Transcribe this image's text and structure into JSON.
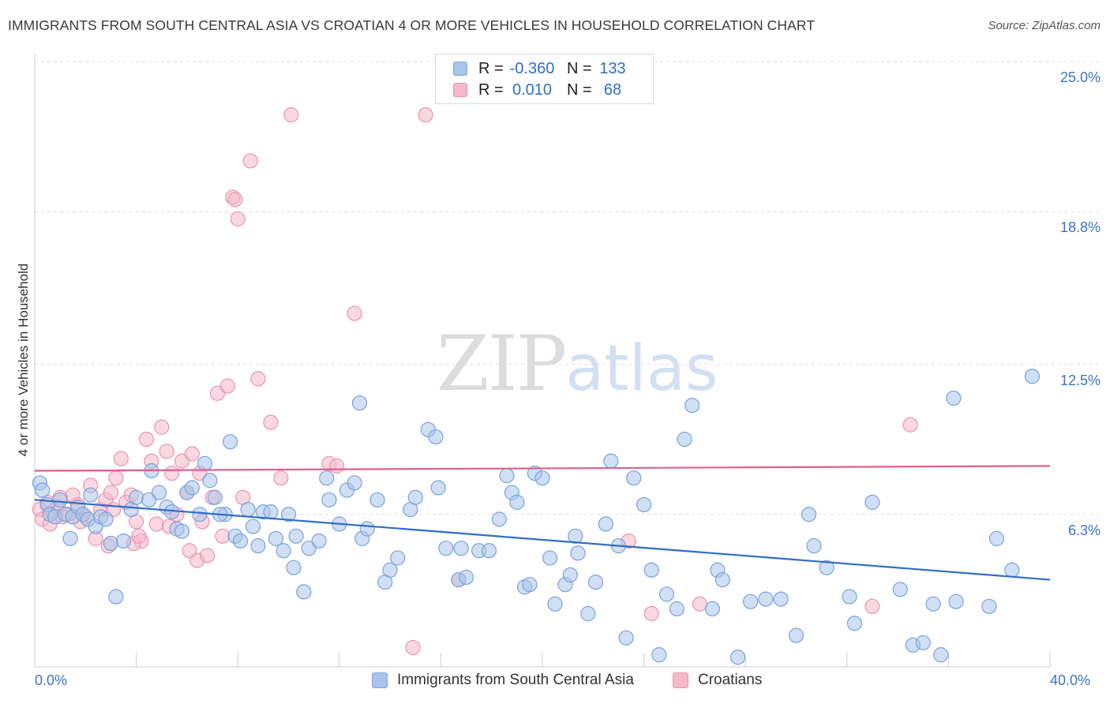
{
  "title": "IMMIGRANTS FROM SOUTH CENTRAL ASIA VS CROATIAN 4 OR MORE VEHICLES IN HOUSEHOLD CORRELATION CHART",
  "source": "Source: ZipAtlas.com",
  "watermark": {
    "part1": "ZIP",
    "part2": "atlas"
  },
  "legend": {
    "rows": [
      {
        "r_label": "R =",
        "r_value": "-0.360",
        "n_label": "N =",
        "n_value": "133",
        "color": "#a9c4ea",
        "border": "#7fa6de"
      },
      {
        "r_label": "R =",
        "r_value": "0.010",
        "n_label": "N =",
        "n_value": "68",
        "color": "#f5b8cb",
        "border": "#ec93ae"
      }
    ]
  },
  "chart_data": {
    "type": "scatter",
    "title": "IMMIGRANTS FROM SOUTH CENTRAL ASIA VS CROATIAN 4 OR MORE VEHICLES IN HOUSEHOLD CORRELATION CHART",
    "xlabel": "",
    "ylabel": "4 or more Vehicles in Household",
    "xlim": [
      0,
      40
    ],
    "ylim": [
      0,
      25
    ],
    "x_tick_labels": [
      "0.0%",
      "40.0%"
    ],
    "y_ticks": [
      {
        "value": 6.3,
        "label": "6.3%"
      },
      {
        "value": 12.5,
        "label": "12.5%"
      },
      {
        "value": 18.8,
        "label": "18.8%"
      },
      {
        "value": 25.0,
        "label": "25.0%"
      }
    ],
    "grid": true,
    "legend_position": "bottom",
    "series": [
      {
        "name": "Immigrants from South Central Asia",
        "color": "#a9c4ea",
        "stroke": "#7aa3dc",
        "line_color": "#2f6dc9",
        "trend": {
          "x0": 0,
          "y0": 6.9,
          "x1": 40,
          "y1": 3.6
        },
        "points": [
          [
            0.2,
            7.6
          ],
          [
            0.3,
            7.3
          ],
          [
            0.5,
            6.7
          ],
          [
            0.6,
            6.3
          ],
          [
            0.8,
            6.2
          ],
          [
            1.0,
            6.9
          ],
          [
            1.2,
            6.3
          ],
          [
            1.4,
            5.3
          ],
          [
            1.5,
            6.2
          ],
          [
            1.7,
            6.6
          ],
          [
            1.9,
            6.3
          ],
          [
            2.1,
            6.1
          ],
          [
            2.2,
            7.1
          ],
          [
            2.4,
            5.8
          ],
          [
            2.6,
            6.2
          ],
          [
            2.8,
            6.1
          ],
          [
            3.0,
            5.1
          ],
          [
            3.5,
            5.2
          ],
          [
            3.8,
            6.5
          ],
          [
            4.0,
            7.0
          ],
          [
            4.5,
            6.9
          ],
          [
            4.6,
            8.1
          ],
          [
            4.9,
            7.2
          ],
          [
            5.2,
            6.6
          ],
          [
            5.4,
            6.4
          ],
          [
            5.6,
            5.7
          ],
          [
            5.8,
            5.6
          ],
          [
            6.0,
            7.2
          ],
          [
            6.2,
            7.4
          ],
          [
            6.5,
            6.3
          ],
          [
            6.7,
            8.4
          ],
          [
            6.9,
            7.7
          ],
          [
            7.1,
            7.0
          ],
          [
            7.5,
            6.3
          ],
          [
            7.7,
            9.3
          ],
          [
            7.9,
            5.4
          ],
          [
            8.1,
            5.2
          ],
          [
            8.4,
            6.5
          ],
          [
            8.6,
            5.8
          ],
          [
            8.8,
            5.0
          ],
          [
            9.0,
            6.4
          ],
          [
            9.3,
            6.4
          ],
          [
            9.5,
            5.3
          ],
          [
            9.8,
            4.8
          ],
          [
            10.0,
            6.3
          ],
          [
            10.3,
            5.4
          ],
          [
            10.6,
            3.1
          ],
          [
            10.8,
            4.9
          ],
          [
            11.2,
            5.2
          ],
          [
            11.6,
            6.9
          ],
          [
            12.0,
            5.9
          ],
          [
            12.3,
            7.3
          ],
          [
            12.6,
            7.6
          ],
          [
            12.9,
            5.3
          ],
          [
            13.1,
            5.7
          ],
          [
            13.5,
            6.9
          ],
          [
            13.8,
            3.5
          ],
          [
            14.0,
            4.0
          ],
          [
            14.3,
            4.5
          ],
          [
            14.8,
            6.5
          ],
          [
            15.0,
            7.0
          ],
          [
            15.5,
            9.8
          ],
          [
            15.9,
            7.4
          ],
          [
            16.2,
            4.9
          ],
          [
            16.7,
            3.6
          ],
          [
            17.0,
            3.7
          ],
          [
            17.5,
            4.8
          ],
          [
            17.9,
            4.8
          ],
          [
            18.3,
            6.1
          ],
          [
            18.8,
            7.2
          ],
          [
            19.0,
            6.8
          ],
          [
            19.3,
            3.3
          ],
          [
            19.5,
            3.4
          ],
          [
            19.7,
            8.0
          ],
          [
            20.0,
            7.8
          ],
          [
            20.3,
            4.5
          ],
          [
            20.5,
            2.6
          ],
          [
            20.9,
            3.4
          ],
          [
            21.1,
            3.8
          ],
          [
            21.4,
            4.7
          ],
          [
            21.8,
            2.2
          ],
          [
            22.1,
            3.5
          ],
          [
            22.5,
            5.9
          ],
          [
            22.7,
            8.5
          ],
          [
            23.3,
            1.2
          ],
          [
            23.6,
            7.8
          ],
          [
            24.0,
            6.7
          ],
          [
            24.3,
            4.0
          ],
          [
            24.6,
            0.5
          ],
          [
            24.9,
            3.0
          ],
          [
            25.3,
            2.4
          ],
          [
            25.6,
            9.4
          ],
          [
            25.9,
            10.8
          ],
          [
            26.7,
            2.4
          ],
          [
            26.9,
            4.0
          ],
          [
            27.1,
            3.6
          ],
          [
            27.7,
            0.4
          ],
          [
            28.2,
            2.7
          ],
          [
            28.8,
            2.8
          ],
          [
            29.4,
            2.8
          ],
          [
            30.0,
            1.3
          ],
          [
            30.5,
            6.3
          ],
          [
            31.2,
            4.1
          ],
          [
            32.1,
            2.9
          ],
          [
            32.3,
            1.8
          ],
          [
            33.0,
            6.8
          ],
          [
            34.1,
            3.2
          ],
          [
            34.6,
            0.9
          ],
          [
            35.0,
            1.0
          ],
          [
            35.4,
            2.6
          ],
          [
            35.7,
            0.5
          ],
          [
            36.3,
            2.7
          ],
          [
            37.6,
            2.5
          ],
          [
            37.9,
            5.3
          ],
          [
            38.5,
            4.0
          ],
          [
            39.3,
            12.0
          ],
          [
            36.2,
            11.1
          ],
          [
            16.8,
            4.9
          ],
          [
            10.2,
            4.1
          ],
          [
            18.6,
            7.9
          ],
          [
            30.7,
            5.0
          ],
          [
            23.0,
            5.0
          ],
          [
            3.2,
            2.9
          ],
          [
            12.8,
            10.9
          ],
          [
            11.5,
            7.8
          ],
          [
            7.3,
            6.3
          ],
          [
            21.3,
            5.4
          ],
          [
            15.8,
            9.5
          ]
        ]
      },
      {
        "name": "Croatians",
        "color": "#f5b8cb",
        "stroke": "#ec93ae",
        "line_color": "#e0608a",
        "trend": {
          "x0": 0,
          "y0": 8.1,
          "x1": 40,
          "y1": 8.3
        },
        "points": [
          [
            0.2,
            6.5
          ],
          [
            0.3,
            6.1
          ],
          [
            0.5,
            6.8
          ],
          [
            0.7,
            6.4
          ],
          [
            0.9,
            6.6
          ],
          [
            1.1,
            6.2
          ],
          [
            1.3,
            6.3
          ],
          [
            1.5,
            7.1
          ],
          [
            1.7,
            6.7
          ],
          [
            2.0,
            6.2
          ],
          [
            2.2,
            7.5
          ],
          [
            2.4,
            5.3
          ],
          [
            2.6,
            6.5
          ],
          [
            2.8,
            6.9
          ],
          [
            3.0,
            7.2
          ],
          [
            3.2,
            7.8
          ],
          [
            3.4,
            8.6
          ],
          [
            3.6,
            6.8
          ],
          [
            3.8,
            7.1
          ],
          [
            4.0,
            6.0
          ],
          [
            4.2,
            5.2
          ],
          [
            4.4,
            9.4
          ],
          [
            4.6,
            8.5
          ],
          [
            4.8,
            5.9
          ],
          [
            5.0,
            9.9
          ],
          [
            5.2,
            8.9
          ],
          [
            5.4,
            8.0
          ],
          [
            5.6,
            6.3
          ],
          [
            5.8,
            8.5
          ],
          [
            6.0,
            7.2
          ],
          [
            6.2,
            8.8
          ],
          [
            6.4,
            4.4
          ],
          [
            6.6,
            6.0
          ],
          [
            6.8,
            4.6
          ],
          [
            7.0,
            7.0
          ],
          [
            7.2,
            11.3
          ],
          [
            7.4,
            5.4
          ],
          [
            7.6,
            11.6
          ],
          [
            7.8,
            19.4
          ],
          [
            8.0,
            18.5
          ],
          [
            8.2,
            7.0
          ],
          [
            8.5,
            20.9
          ],
          [
            8.8,
            11.9
          ],
          [
            9.3,
            10.1
          ],
          [
            9.7,
            7.8
          ],
          [
            10.1,
            22.8
          ],
          [
            11.6,
            8.4
          ],
          [
            11.9,
            8.3
          ],
          [
            12.6,
            14.6
          ],
          [
            14.9,
            0.8
          ],
          [
            15.4,
            22.8
          ],
          [
            16.7,
            3.6
          ],
          [
            24.3,
            2.2
          ],
          [
            26.2,
            2.6
          ],
          [
            33.0,
            2.5
          ],
          [
            34.5,
            10.0
          ],
          [
            23.4,
            5.2
          ],
          [
            6.1,
            4.8
          ],
          [
            2.9,
            5.0
          ],
          [
            3.9,
            5.1
          ],
          [
            1.8,
            6.0
          ],
          [
            0.6,
            5.9
          ],
          [
            5.3,
            5.8
          ],
          [
            6.5,
            8.0
          ],
          [
            7.9,
            19.3
          ],
          [
            3.1,
            6.5
          ],
          [
            1.0,
            7.0
          ],
          [
            4.1,
            5.4
          ]
        ]
      }
    ]
  },
  "bottom_legend": [
    {
      "label": "Immigrants from South Central Asia",
      "color": "#a9c4ea",
      "border": "#7fa6de"
    },
    {
      "label": "Croatians",
      "color": "#f5b8cb",
      "border": "#ec93ae"
    }
  ]
}
